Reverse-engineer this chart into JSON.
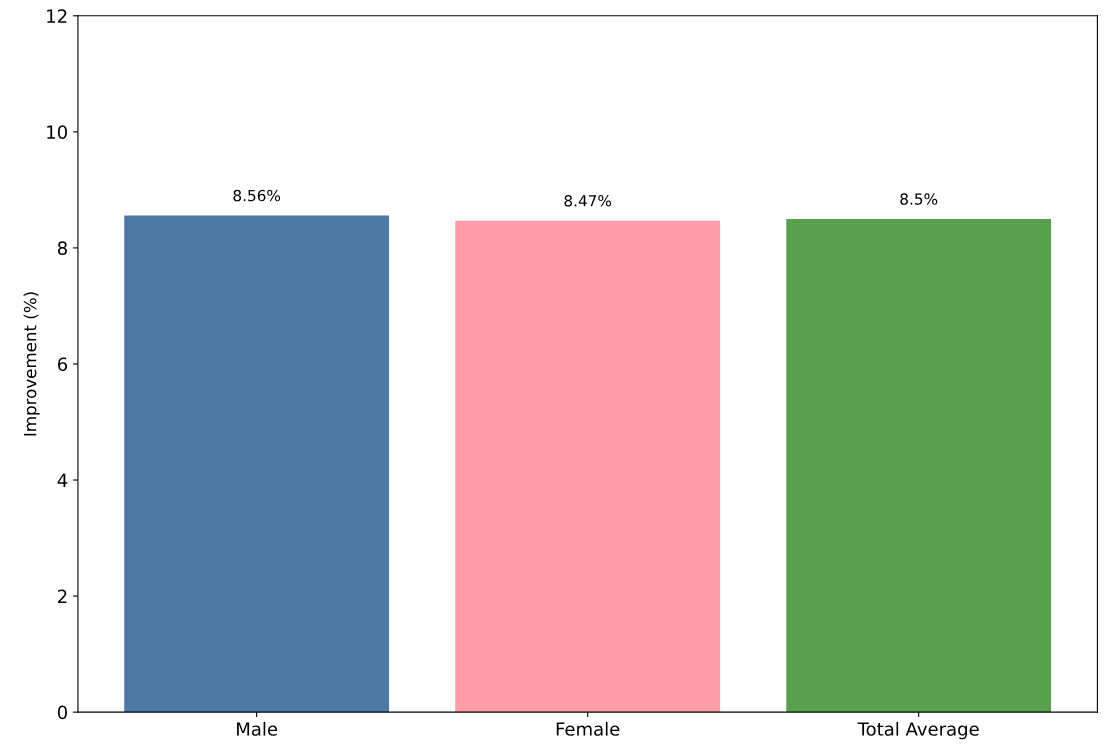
{
  "chart_data": {
    "type": "bar",
    "ylabel": "Improvement (%)",
    "categories": [
      "Male",
      "Female",
      "Total Average"
    ],
    "values": [
      8.56,
      8.47,
      8.5
    ],
    "colors": [
      "#4e79a7",
      "#ff9da7",
      "#59a14f"
    ],
    "value_labels": [
      "8.56%",
      "8.47%",
      "8.5%"
    ],
    "ylim": [
      0,
      12
    ],
    "yticks": [
      0,
      2,
      4,
      6,
      8,
      10,
      12
    ],
    "grid": false
  }
}
